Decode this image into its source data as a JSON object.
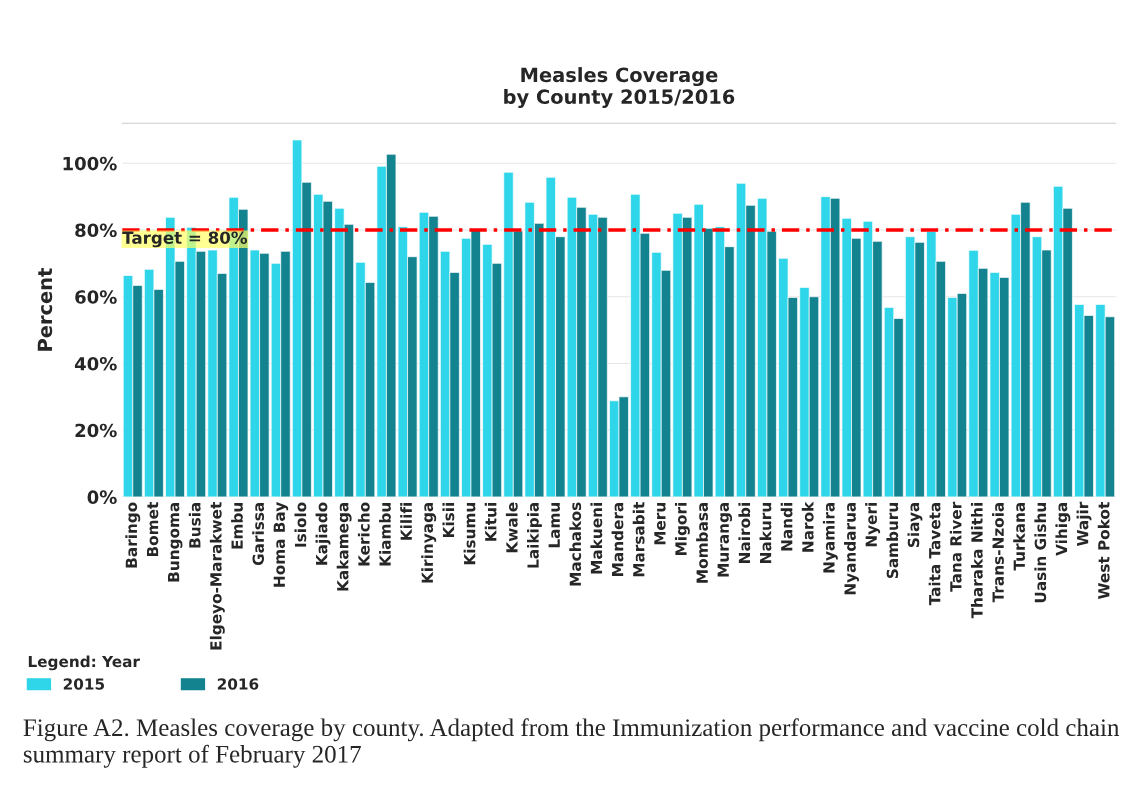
{
  "chart_data": {
    "type": "bar",
    "title": "Measles Coverage\nby County 2015/2016",
    "ylabel": "Percent",
    "categories": [
      "Baringo",
      "Bomet",
      "Bungoma",
      "Busia",
      "Elgeyo-Marakwet",
      "Embu",
      "Garissa",
      "Homa Bay",
      "Isiolo",
      "Kajiado",
      "Kakamega",
      "Kericho",
      "Kiambu",
      "Kilifi",
      "Kirinyaga",
      "Kisii",
      "Kisumu",
      "Kitui",
      "Kwale",
      "Laikipia",
      "Lamu",
      "Machakos",
      "Makueni",
      "Mandera",
      "Marsabit",
      "Meru",
      "Migori",
      "Mombasa",
      "Muranga",
      "Nairobi",
      "Nakuru",
      "Nandi",
      "Narok",
      "Nyamira",
      "Nyandarua",
      "Nyeri",
      "Samburu",
      "Siaya",
      "Taita Taveta",
      "Tana River",
      "Tharaka Nithi",
      "Trans-Nzoia",
      "Turkana",
      "Uasin Gishu",
      "Vihiga",
      "Wajir",
      "West Pokot"
    ],
    "series": [
      {
        "name": "2015",
        "color": "#2fd5e8",
        "values": [
          66.4,
          68.2,
          83.8,
          80.8,
          74,
          89.8,
          74,
          70,
          107,
          90.7,
          86.5,
          70.3,
          99.1,
          81,
          85.3,
          73.6,
          77.5,
          75.7,
          97.3,
          88.3,
          95.8,
          89.8,
          84.7,
          28.8,
          90.7,
          73.3,
          85,
          87.7,
          81,
          94,
          89.5,
          71.5,
          62.8,
          90,
          83.5,
          82.6,
          56.8,
          78,
          79.6,
          59.8,
          73.9,
          67.3,
          84.7,
          78,
          93.1,
          57.7,
          57.7
        ]
      },
      {
        "name": "2016",
        "color": "#13838f",
        "values": [
          63.4,
          62.2,
          70.6,
          73.6,
          67,
          86.2,
          73,
          73.6,
          94.3,
          88.6,
          81.7,
          64.3,
          102.7,
          72,
          84.1,
          67.3,
          80,
          70,
          79.7,
          82,
          78,
          86.8,
          83.8,
          30,
          79,
          67.9,
          83.8,
          80.5,
          75,
          87.4,
          79.6,
          59.8,
          60,
          89.5,
          77.5,
          76.6,
          53.5,
          76.3,
          70.6,
          61,
          68.5,
          65.8,
          88.3,
          74,
          86.5,
          54.4,
          54
        ]
      }
    ],
    "ylim": [
      0,
      112
    ],
    "yticks": [
      {
        "value": 0,
        "label": "0%"
      },
      {
        "value": 20,
        "label": "20%"
      },
      {
        "value": 40,
        "label": "40%"
      },
      {
        "value": 60,
        "label": "60%"
      },
      {
        "value": 80,
        "label": "80%"
      },
      {
        "value": 100,
        "label": "100%"
      }
    ],
    "grid": "y",
    "legend": "bottom left",
    "legend_title": "Legend: Year",
    "ref_lines": [
      {
        "axis": "y",
        "value": 80,
        "label": "Target = 80%",
        "color": "#ff0000",
        "line_style": "dashed"
      }
    ],
    "annotations": [
      "Figure A2. Measles coverage by county. Adapted from the Immunization performance and vaccine cold chain summary report of February 2017"
    ]
  }
}
